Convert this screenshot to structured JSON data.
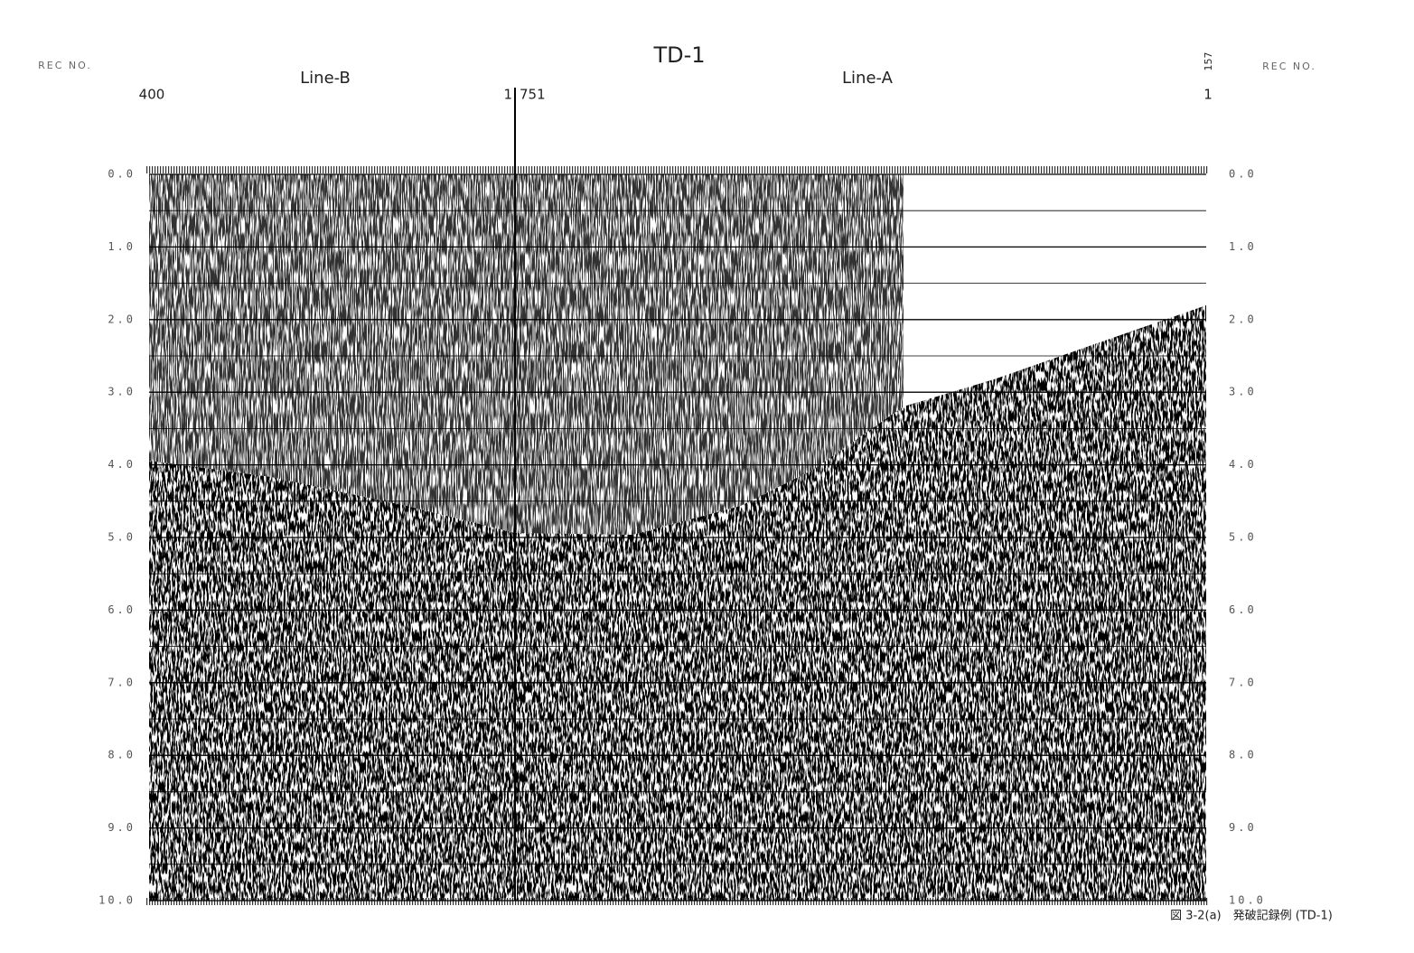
{
  "chart_data": {
    "type": "seismic-record",
    "title": "TD-1",
    "axis_label_left": "REC NO.",
    "axis_label_right": "REC NO.",
    "line_labels": [
      "Line-B",
      "Line-A"
    ],
    "record_labels": {
      "left_start": 400,
      "left_end": 1,
      "right_start": 751,
      "right_end": 1,
      "right_top": 157
    },
    "ylim": [
      0,
      10
    ],
    "y_inverted": true,
    "yticks": [
      {
        "value": 0,
        "label": "0.0"
      },
      {
        "value": 1,
        "label": "1.0"
      },
      {
        "value": 2,
        "label": "2.0"
      },
      {
        "value": 3,
        "label": "3.0"
      },
      {
        "value": 4,
        "label": "4.0"
      },
      {
        "value": 5,
        "label": "5.0"
      },
      {
        "value": 6,
        "label": "6.0"
      },
      {
        "value": 7,
        "label": "7.0"
      },
      {
        "value": 8,
        "label": "8.0"
      },
      {
        "value": 9,
        "label": "9.0"
      },
      {
        "value": 10,
        "label": "10.0"
      }
    ],
    "minor_yticks": [
      0.5,
      1.5,
      2.5,
      3.5,
      4.5,
      5.5,
      6.5,
      7.5,
      8.5,
      9.5
    ],
    "grid": true
  },
  "caption": "図 3-2(a)　発破記録例 (TD-1)"
}
